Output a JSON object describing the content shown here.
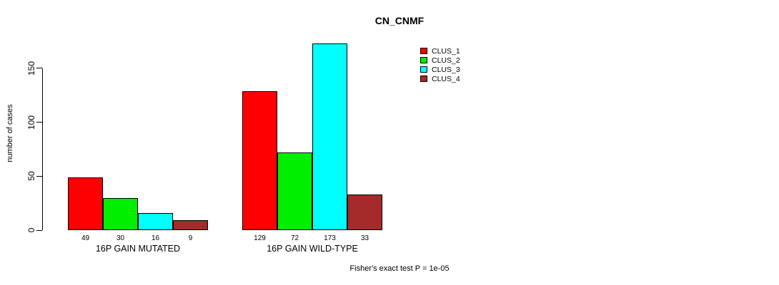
{
  "chart_data": {
    "type": "bar",
    "title": "CN_CNMF",
    "ylabel": "number of cases",
    "yticks": [
      0,
      50,
      100,
      150
    ],
    "ylim": [
      0,
      175
    ],
    "grid": false,
    "legend_position": "top-right-outside",
    "legend": [
      {
        "name": "CLUS_1",
        "color": "#FF0000"
      },
      {
        "name": "CLUS_2",
        "color": "#00EE00"
      },
      {
        "name": "CLUS_3",
        "color": "#00FFFF"
      },
      {
        "name": "CLUS_4",
        "color": "#A52A2A"
      }
    ],
    "categories": [
      "16P GAIN MUTATED",
      "16P GAIN WILD-TYPE"
    ],
    "groups": [
      {
        "label": "16P GAIN MUTATED",
        "values": [
          49,
          30,
          16,
          9
        ]
      },
      {
        "label": "16P GAIN WILD-TYPE",
        "values": [
          129,
          72,
          173,
          33
        ]
      }
    ],
    "annotation": "Fisher's exact test P = 1e-05",
    "background_color": "#FFFFFF",
    "axis_color": "#000000"
  }
}
